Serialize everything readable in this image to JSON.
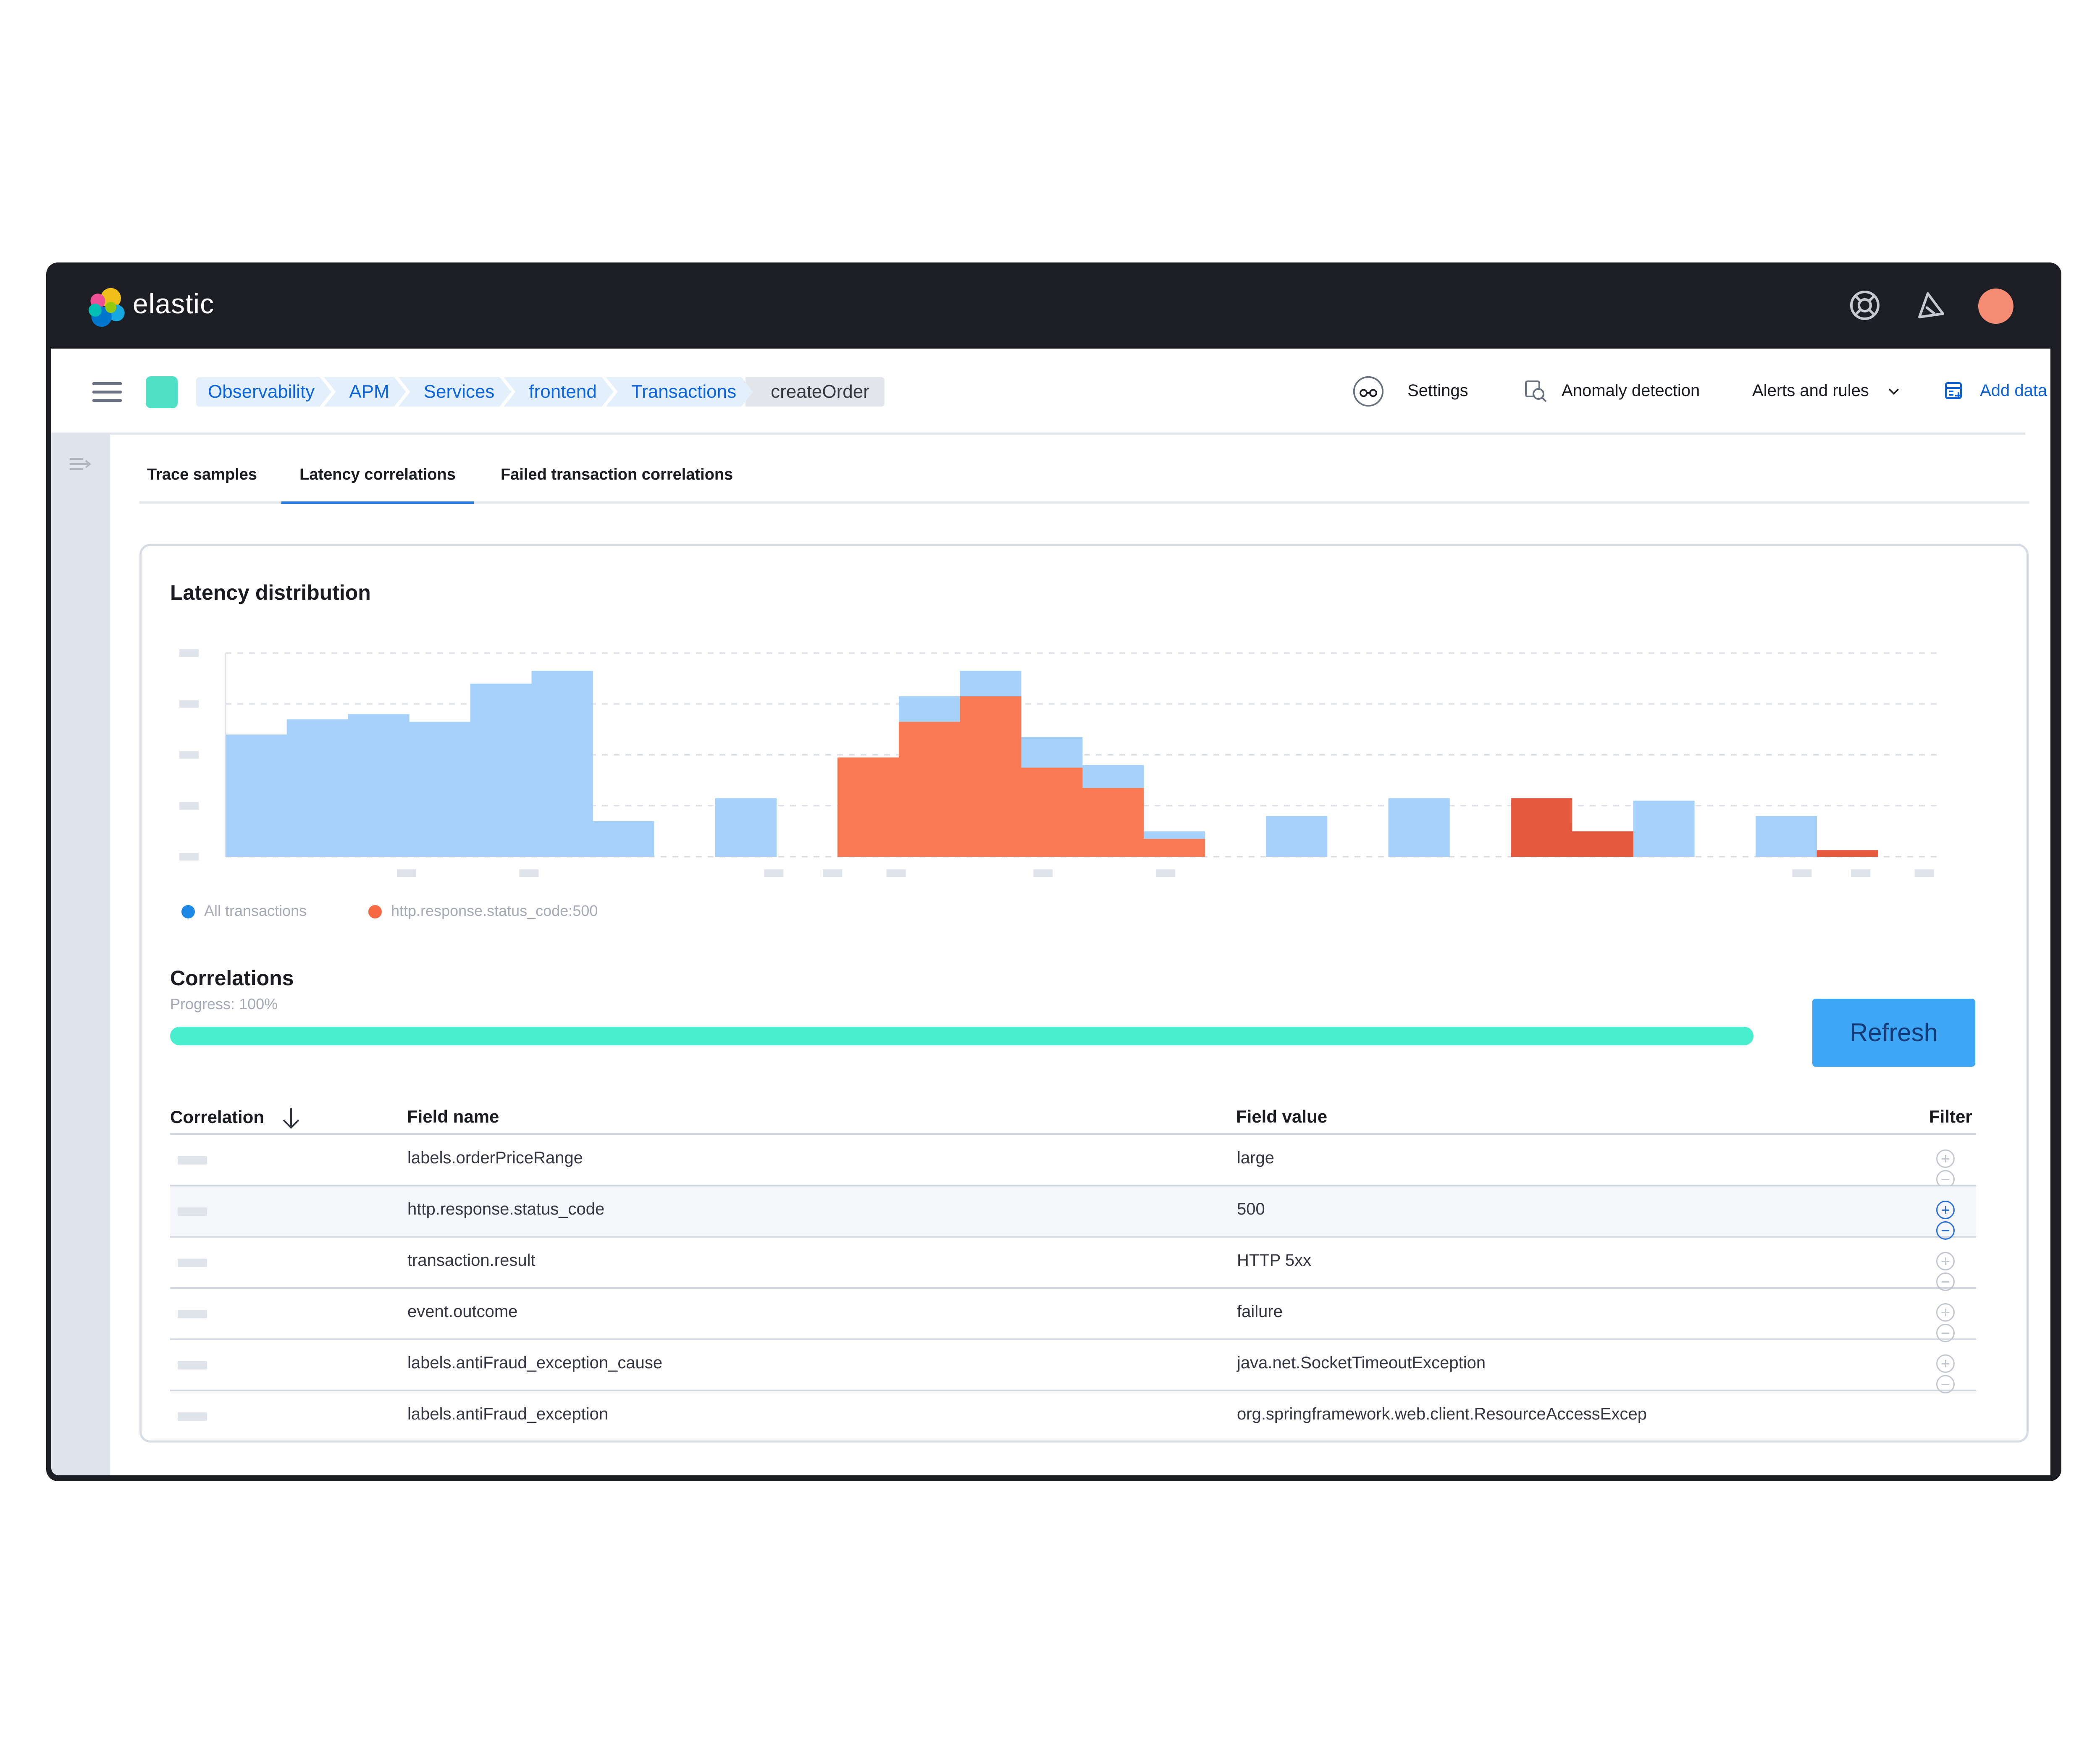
{
  "app": {
    "brand": "elastic"
  },
  "topbar": {
    "icons": [
      "help-icon",
      "newsfeed-icon"
    ],
    "avatar_color": "#f58b73"
  },
  "breadcrumbs": [
    "Observability",
    "APM",
    "Services",
    "frontend",
    "Transactions",
    "createOrder"
  ],
  "header": {
    "settings": "Settings",
    "anomaly": "Anomaly detection",
    "alerts": "Alerts and rules",
    "add_data": "Add data"
  },
  "tabs": [
    "Trace samples",
    "Latency correlations",
    "Failed transaction correlations"
  ],
  "active_tab": "Latency correlations",
  "latency": {
    "title": "Latency distribution",
    "legend": [
      "All transactions",
      "http.response.status_code:500"
    ]
  },
  "chart_data": {
    "type": "bar",
    "title": "Latency distribution",
    "x": [
      0,
      1,
      2,
      3,
      4,
      5,
      6,
      7,
      8,
      9,
      10,
      11,
      12,
      13,
      14,
      15,
      16,
      17,
      18,
      19,
      20,
      21,
      22,
      23,
      24,
      25,
      26,
      27
    ],
    "series": [
      {
        "name": "All transactions",
        "color": "#a6d1fb",
        "values": [
          2.4,
          2.7,
          2.8,
          2.65,
          3.4,
          3.65,
          0.7,
          0,
          1.15,
          0,
          1.95,
          3.15,
          3.65,
          2.35,
          1.8,
          0.5,
          0,
          0.8,
          0,
          1.15,
          0,
          0.6,
          0.5,
          1.1,
          0,
          0.8,
          0.1,
          0
        ]
      },
      {
        "name": "http.response.status_code:500",
        "color": "#f87a52",
        "values": [
          0,
          0,
          0,
          0,
          0,
          0,
          0,
          0,
          0,
          0,
          1.95,
          2.65,
          3.15,
          1.75,
          1.35,
          0.35,
          0,
          0,
          0,
          0,
          0,
          1.15,
          0.5,
          0,
          0,
          0,
          0.13,
          0
        ]
      }
    ],
    "ylim": [
      0,
      4
    ],
    "grid": true,
    "legend_position": "bottom-left"
  },
  "correlations": {
    "title": "Correlations",
    "progress_label": "Progress: 100%",
    "progress": 1.0,
    "refresh": "Refresh",
    "columns": {
      "correlation": "Correlation",
      "field_name": "Field name",
      "field_value": "Field value",
      "filter": "Filter"
    },
    "rows": [
      {
        "field": "labels.orderPriceRange",
        "value": "large"
      },
      {
        "field": "http.response.status_code",
        "value": "500"
      },
      {
        "field": "transaction.result",
        "value": "HTTP 5xx"
      },
      {
        "field": "event.outcome",
        "value": "failure"
      },
      {
        "field": "labels.antiFraud_exception_cause",
        "value": "java.net.SocketTimeoutException"
      },
      {
        "field": "labels.antiFraud_exception",
        "value": "org.springframework.web.client.ResourceAccessExcep"
      }
    ]
  }
}
